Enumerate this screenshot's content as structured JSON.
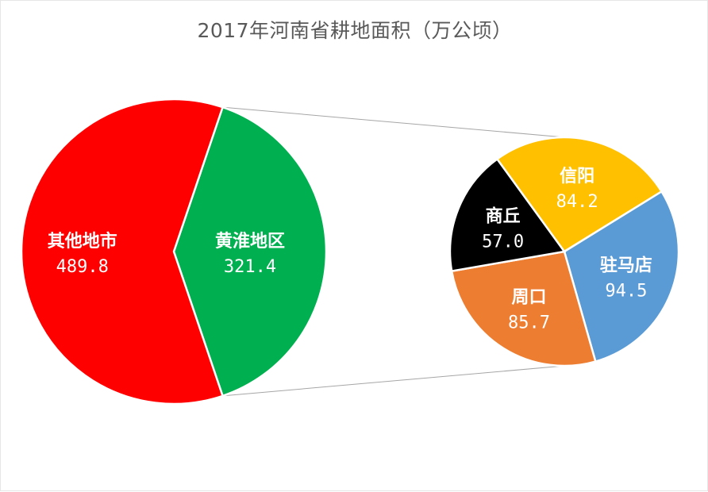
{
  "chart_data": {
    "type": "pie",
    "title": "2017年河南省耕地面积（万公顷）",
    "main_pie": {
      "slices": [
        {
          "name": "其他地市",
          "value": 489.8,
          "value_label": "489.8",
          "color": "#ff0000",
          "label_color": "#ffffff"
        },
        {
          "name": "黄淮地区",
          "value": 321.4,
          "value_label": "321.4",
          "color": "#00b050",
          "label_color": "#ffffff"
        }
      ]
    },
    "sub_pie": {
      "of": "黄淮地区",
      "slices": [
        {
          "name": "信阳",
          "value": 84.2,
          "value_label": "84.2",
          "color": "#ffc000",
          "label_color": "#ffffff"
        },
        {
          "name": "驻马店",
          "value": 94.5,
          "value_label": "94.5",
          "color": "#5b9bd5",
          "label_color": "#ffffff"
        },
        {
          "name": "周口",
          "value": 85.7,
          "value_label": "85.7",
          "color": "#ed7d31",
          "label_color": "#ffffff"
        },
        {
          "name": "商丘",
          "value": 57.0,
          "value_label": "57.0",
          "color": "#000000",
          "label_color": "#ffffff"
        }
      ]
    },
    "legend": "none",
    "connector_color": "#a6a6a6"
  }
}
